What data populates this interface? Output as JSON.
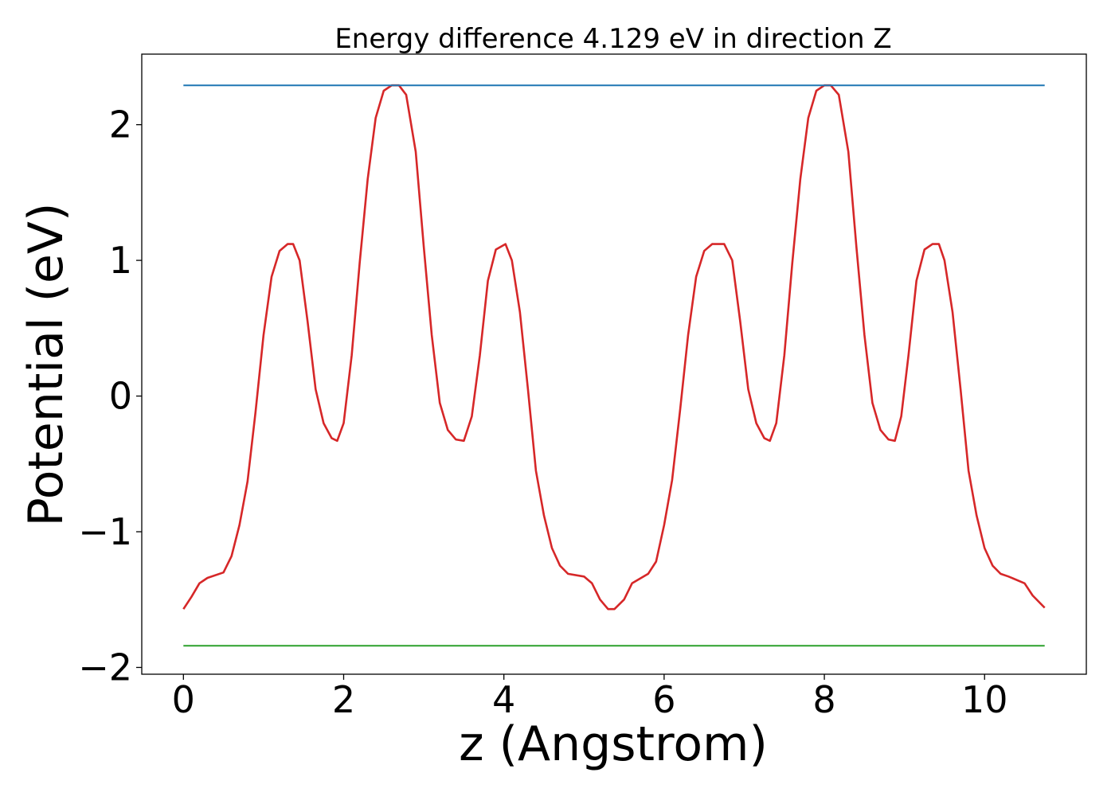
{
  "chart_data": {
    "type": "line",
    "title": "Energy difference 4.129 eV in direction Z",
    "xlabel": "z (Angstrom)",
    "ylabel": "Potential (eV)",
    "xlim": [
      -0.52,
      11.27
    ],
    "ylim": [
      -2.05,
      2.52
    ],
    "x_ticks": [
      0,
      2,
      4,
      6,
      8,
      10
    ],
    "x_tick_labels": [
      "0",
      "2",
      "4",
      "6",
      "8",
      "10"
    ],
    "y_ticks": [
      -2,
      -1,
      0,
      1,
      2
    ],
    "y_tick_labels": [
      "−2",
      "−1",
      "0",
      "1",
      "2"
    ],
    "grid": false,
    "series": [
      {
        "color": "#d62728",
        "x": [
          0.0,
          0.1,
          0.2,
          0.3,
          0.5,
          0.6,
          0.7,
          0.8,
          0.9,
          1.0,
          1.1,
          1.2,
          1.3,
          1.37,
          1.45,
          1.55,
          1.65,
          1.75,
          1.85,
          1.92,
          2.0,
          2.1,
          2.2,
          2.3,
          2.4,
          2.5,
          2.6,
          2.69,
          2.78,
          2.9,
          3.0,
          3.1,
          3.2,
          3.3,
          3.4,
          3.5,
          3.6,
          3.7,
          3.8,
          3.9,
          4.02,
          4.1,
          4.2,
          4.3,
          4.4,
          4.5,
          4.6,
          4.7,
          4.8,
          5.0,
          5.1,
          5.2,
          5.3,
          5.38,
          5.5,
          5.6,
          5.8,
          5.9,
          6.0,
          6.1,
          6.2,
          6.3,
          6.4,
          6.5,
          6.6,
          6.75,
          6.85,
          6.95,
          7.05,
          7.15,
          7.25,
          7.32,
          7.4,
          7.5,
          7.6,
          7.7,
          7.8,
          7.9,
          8.0,
          8.08,
          8.18,
          8.3,
          8.4,
          8.5,
          8.6,
          8.7,
          8.8,
          8.88,
          8.96,
          9.05,
          9.15,
          9.25,
          9.35,
          9.43,
          9.5,
          9.6,
          9.7,
          9.8,
          9.9,
          10.0,
          10.1,
          10.2,
          10.3,
          10.5,
          10.6,
          10.75
        ],
        "y": [
          -1.57,
          -1.48,
          -1.38,
          -1.34,
          -1.3,
          -1.18,
          -0.95,
          -0.63,
          -0.12,
          0.45,
          0.88,
          1.07,
          1.12,
          1.12,
          1.0,
          0.55,
          0.05,
          -0.2,
          -0.31,
          -0.33,
          -0.2,
          0.3,
          0.98,
          1.6,
          2.05,
          2.25,
          2.29,
          2.29,
          2.22,
          1.8,
          1.1,
          0.45,
          -0.05,
          -0.25,
          -0.32,
          -0.33,
          -0.15,
          0.3,
          0.85,
          1.08,
          1.12,
          1.0,
          0.62,
          0.05,
          -0.55,
          -0.88,
          -1.12,
          -1.25,
          -1.31,
          -1.33,
          -1.38,
          -1.5,
          -1.57,
          -1.57,
          -1.5,
          -1.38,
          -1.31,
          -1.22,
          -0.95,
          -0.62,
          -0.1,
          0.45,
          0.88,
          1.07,
          1.12,
          1.12,
          1.0,
          0.55,
          0.05,
          -0.2,
          -0.31,
          -0.33,
          -0.2,
          0.3,
          0.98,
          1.6,
          2.05,
          2.25,
          2.29,
          2.29,
          2.22,
          1.8,
          1.1,
          0.45,
          -0.05,
          -0.25,
          -0.32,
          -0.33,
          -0.15,
          0.3,
          0.85,
          1.08,
          1.12,
          1.12,
          1.0,
          0.62,
          0.05,
          -0.55,
          -0.88,
          -1.12,
          -1.25,
          -1.31,
          -1.33,
          -1.38,
          -1.47,
          -1.56
        ]
      },
      {
        "color": "#1f77b4",
        "x": [
          0.0,
          10.75
        ],
        "y": [
          2.29,
          2.29
        ]
      },
      {
        "color": "#2ca02c",
        "x": [
          0.0,
          10.75
        ],
        "y": [
          -1.84,
          -1.84
        ]
      }
    ]
  }
}
